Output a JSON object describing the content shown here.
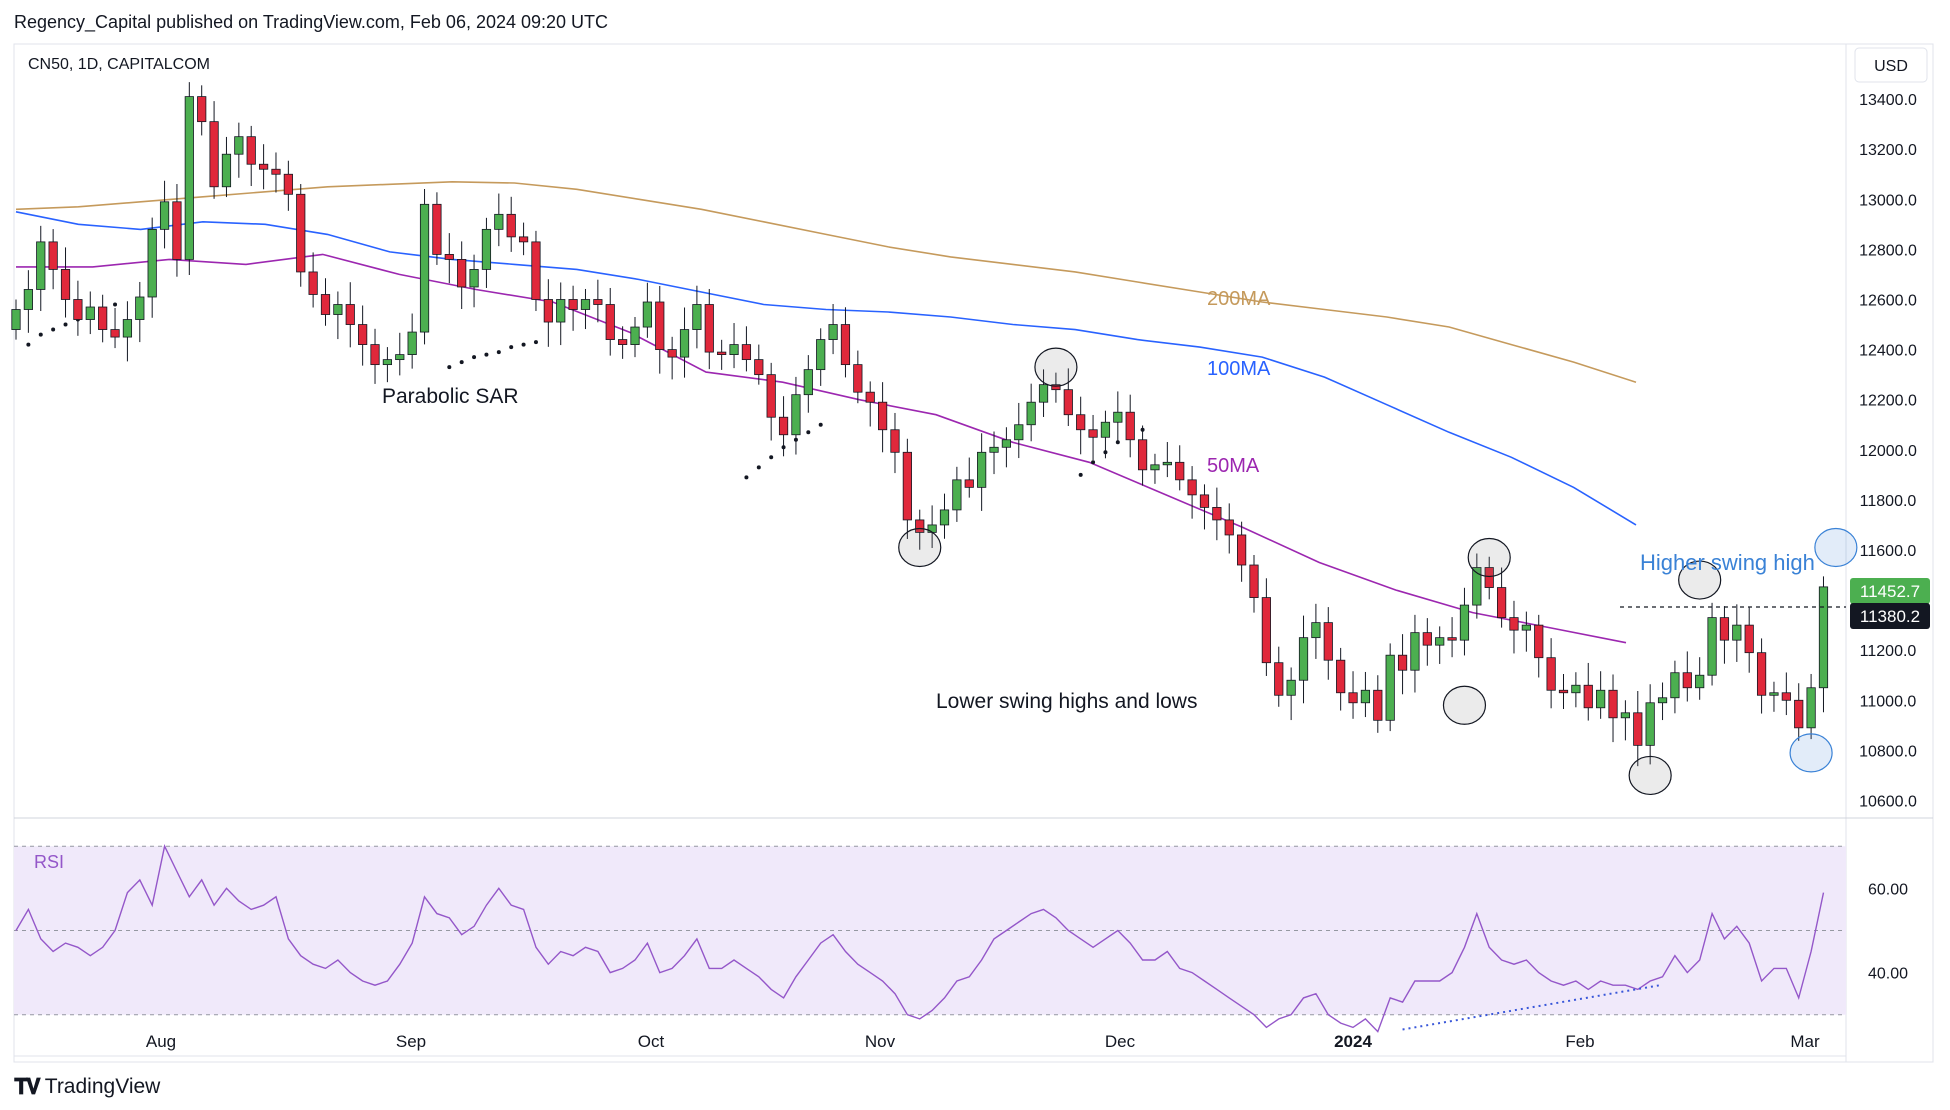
{
  "header": {
    "published": "Regency_Capital published on TradingView.com, Feb 06, 2024 09:20 UTC"
  },
  "symbol_info": "CN50, 1D, CAPITALCOM",
  "currency_button": "USD",
  "footer": {
    "brand": "TradingView",
    "logo": "TV-logo"
  },
  "annotations": {
    "ma200": "200MA",
    "ma100": "100MA",
    "ma50": "50MA",
    "sar": "Parabolic SAR",
    "lower": "Lower swing highs and lows",
    "higher": "Higher swing high"
  },
  "price_badges": {
    "last": "11452.7",
    "prev": "11380.2"
  },
  "colors": {
    "up": "#4caf50",
    "down": "#e0283b",
    "ma50": "#9c27b0",
    "ma100": "#2962ff",
    "ma200": "#c59a5c",
    "rsi": "#9457c9",
    "rsi_band": "#f0e9fa",
    "trend": "#3957d9",
    "blue_circle": "#3a82d6"
  },
  "chart_data": [
    {
      "type": "candlestick",
      "title": "CN50, 1D, CAPITALCOM",
      "x_ticks": [
        "Aug",
        "Sep",
        "Oct",
        "Nov",
        "Dec",
        "2024",
        "Feb",
        "Mar"
      ],
      "y_ticks": [
        "13400.0",
        "13200.0",
        "13000.0",
        "12800.0",
        "12600.0",
        "12400.0",
        "12200.0",
        "12000.0",
        "11800.0",
        "11600.0",
        "11400.0",
        "11200.0",
        "11000.0",
        "10800.0",
        "10600.0"
      ],
      "ylim": [
        10530,
        13620
      ],
      "closes": [
        12560,
        12640,
        12830,
        12720,
        12600,
        12520,
        12570,
        12480,
        12450,
        12520,
        12610,
        12880,
        12990,
        12760,
        13410,
        13310,
        13050,
        13180,
        13250,
        13140,
        13120,
        13100,
        13020,
        12710,
        12620,
        12540,
        12580,
        12500,
        12420,
        12340,
        12360,
        12380,
        12470,
        12980,
        12780,
        12760,
        12650,
        12720,
        12880,
        12940,
        12850,
        12830,
        12600,
        12510,
        12600,
        12560,
        12600,
        12580,
        12440,
        12420,
        12490,
        12590,
        12400,
        12370,
        12480,
        12580,
        12390,
        12380,
        12420,
        12360,
        12300,
        12130,
        12060,
        12220,
        12320,
        12440,
        12500,
        12340,
        12230,
        12190,
        12080,
        11990,
        11720,
        11670,
        11700,
        11760,
        11880,
        11850,
        11990,
        12010,
        12040,
        12100,
        12190,
        12260,
        12240,
        12140,
        12080,
        12050,
        12110,
        12150,
        12040,
        11920,
        11940,
        11950,
        11880,
        11820,
        11770,
        11720,
        11660,
        11540,
        11410,
        11150,
        11020,
        11080,
        11250,
        11310,
        11160,
        11030,
        10990,
        11040,
        10920,
        11180,
        11120,
        11270,
        11220,
        11250,
        11240,
        11380,
        11530,
        11450,
        11330,
        11280,
        11300,
        11170,
        11040,
        11030,
        11060,
        10970,
        11040,
        10930,
        10950,
        10820,
        10990,
        11010,
        11110,
        11050,
        11100,
        11330,
        11240,
        11300,
        11190,
        11020,
        11030,
        11000,
        10890,
        11050,
        11452.7
      ],
      "series": [
        {
          "name": "200MA",
          "values": [
            12960,
            12970,
            12990,
            13010,
            13030,
            13050,
            13060,
            13070,
            13065,
            13040,
            13000,
            12960,
            12910,
            12860,
            12810,
            12770,
            12740,
            12710,
            12670,
            12630,
            12590,
            12560,
            12530,
            12490,
            12420,
            12350,
            12270
          ]
        },
        {
          "name": "100MA",
          "values": [
            12950,
            12900,
            12880,
            12910,
            12900,
            12860,
            12790,
            12760,
            12740,
            12720,
            12680,
            12630,
            12580,
            12560,
            12550,
            12530,
            12500,
            12480,
            12440,
            12410,
            12370,
            12290,
            12180,
            12070,
            11970,
            11850,
            11700
          ]
        },
        {
          "name": "50MA",
          "values": [
            12730,
            12730,
            12760,
            12740,
            12780,
            12700,
            12640,
            12590,
            12470,
            12310,
            12270,
            12200,
            12140,
            12030,
            11950,
            11820,
            11690,
            11550,
            11440,
            11350,
            11290,
            11230
          ]
        }
      ],
      "sar_segments": [
        {
          "start": 1,
          "values": [
            12420,
            12460,
            12480,
            12500,
            12520,
            12540,
            12560,
            12580
          ]
        },
        {
          "start": 35,
          "values": [
            12330,
            12350,
            12370,
            12380,
            12390,
            12410,
            12420,
            12430
          ]
        },
        {
          "start": 59,
          "values": [
            11890,
            11930,
            11970,
            12010,
            12040,
            12070,
            12100
          ]
        },
        {
          "start": 86,
          "values": [
            11900,
            11950,
            11990,
            12030,
            12060,
            12080
          ]
        }
      ],
      "swing_markers": [
        {
          "label": "low",
          "index": 73,
          "value": 11610
        },
        {
          "label": "high",
          "index": 84,
          "value": 12330
        },
        {
          "label": "low",
          "index": 117,
          "value": 10980
        },
        {
          "label": "high",
          "index": 119,
          "value": 11570
        },
        {
          "label": "low",
          "index": 132,
          "value": 10700
        },
        {
          "label": "high",
          "index": 136,
          "value": 11480
        },
        {
          "label": "low-blue",
          "index": 145,
          "value": 10790
        },
        {
          "label": "high-blue",
          "index": 147,
          "value": 11610
        }
      ]
    },
    {
      "type": "line",
      "title": "RSI",
      "y_ticks": [
        "60.00",
        "40.00"
      ],
      "ylim": [
        24,
        71
      ],
      "values": [
        50,
        55,
        48,
        45,
        47,
        46,
        44,
        46,
        50,
        59,
        62,
        56,
        70,
        64,
        58,
        62,
        56,
        60,
        57,
        55,
        56,
        58,
        48,
        44,
        42,
        41,
        43,
        40,
        38,
        37,
        38,
        42,
        47,
        58,
        54,
        53,
        49,
        51,
        56,
        60,
        56,
        55,
        46,
        42,
        45,
        44,
        46,
        45,
        40,
        41,
        43,
        47,
        40,
        41,
        44,
        48,
        41,
        41,
        43,
        41,
        39,
        36,
        34,
        39,
        43,
        47,
        49,
        45,
        42,
        40,
        38,
        35,
        30,
        29,
        31,
        34,
        38,
        39,
        43,
        48,
        50,
        52,
        54,
        55,
        53,
        50,
        48,
        46,
        48,
        50,
        47,
        43,
        43,
        45,
        41,
        40,
        38,
        36,
        34,
        32,
        30,
        27,
        29,
        30,
        34,
        35,
        30,
        28,
        27,
        29,
        26,
        34,
        33,
        38,
        38,
        38,
        40,
        46,
        54,
        46,
        43,
        42,
        43,
        40,
        38,
        37,
        38,
        36,
        38,
        37,
        37,
        36,
        38,
        39,
        44,
        40,
        43,
        54,
        48,
        51,
        47,
        38,
        41,
        41,
        34,
        45,
        59
      ]
    }
  ]
}
